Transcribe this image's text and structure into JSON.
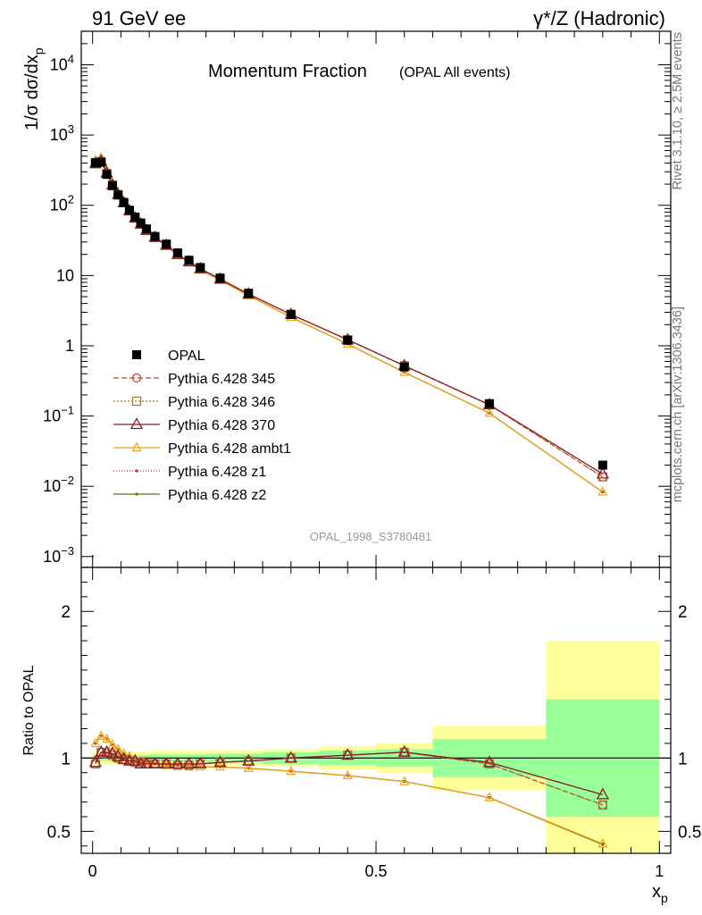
{
  "header": {
    "left": "91 GeV ee",
    "right": "γ*/Z (Hadronic)",
    "side_top": "Rivet 3.1.10, ≥ 2.5M events",
    "side_bottom": "mcplots.cern.ch [arXiv:1306.3436]"
  },
  "chart_data": [
    {
      "type": "line",
      "title": "Momentum Fraction",
      "subtitle": "(OPAL All events)",
      "ylabel": "1/σ dσ/dx_p",
      "yscale": "log",
      "ylim": [
        0.0007,
        30000
      ],
      "xlim": [
        -0.02,
        1.02
      ],
      "analysis": "OPAL_1998_S3780481",
      "legend_position": "middle-left",
      "x": [
        0.005,
        0.015,
        0.025,
        0.035,
        0.045,
        0.055,
        0.065,
        0.075,
        0.085,
        0.095,
        0.11,
        0.13,
        0.15,
        0.17,
        0.19,
        0.225,
        0.275,
        0.35,
        0.45,
        0.55,
        0.7,
        0.9
      ],
      "series": [
        {
          "name": "OPAL",
          "color": "#000000",
          "marker": "square",
          "values": [
            405,
            410,
            275,
            190,
            140,
            110,
            85,
            68,
            56,
            46,
            36,
            28,
            21,
            16.5,
            13,
            9.2,
            5.6,
            2.8,
            1.2,
            0.5,
            0.15,
            0.02
          ]
        },
        {
          "name": "Pythia 6.428 345",
          "color": "#c0403c",
          "dash": "6,3",
          "marker": "circle",
          "values": [
            390,
            420,
            285,
            195,
            142,
            109,
            84,
            66,
            54,
            44,
            35,
            27,
            20,
            15.7,
            12.5,
            8.9,
            5.45,
            2.8,
            1.22,
            0.52,
            0.144,
            0.0136
          ]
        },
        {
          "name": "Pythia 6.428 346",
          "color": "#a87838",
          "dash": "2,2",
          "marker": "square-open",
          "values": [
            390,
            420,
            285,
            195,
            142,
            109,
            84,
            66,
            54,
            44,
            35,
            27,
            20,
            15.7,
            12.5,
            8.9,
            5.45,
            2.8,
            1.22,
            0.52,
            0.144,
            0.0136
          ]
        },
        {
          "name": "Pythia 6.428 370",
          "color": "#8b1a22",
          "dash": "",
          "marker": "triangle",
          "values": [
            392,
            425,
            288,
            195,
            143,
            109,
            84,
            66,
            54,
            44,
            35,
            27,
            20,
            15.7,
            12.5,
            8.9,
            5.45,
            2.8,
            1.22,
            0.52,
            0.145,
            0.015
          ]
        },
        {
          "name": "Pythia 6.428 ambt1",
          "color": "#e8a818",
          "dash": "",
          "marker": "triangle-small",
          "values": [
            440,
            475,
            310,
            205,
            148,
            112,
            86,
            67,
            54,
            44,
            34.5,
            26.5,
            19.8,
            15.3,
            12,
            8.6,
            5.2,
            2.55,
            1.06,
            0.42,
            0.11,
            0.0083
          ]
        },
        {
          "name": "Pythia 6.428 z1",
          "color": "#e02020",
          "dash": "1,2",
          "marker": "dot",
          "values": [
            440,
            475,
            310,
            205,
            148,
            112,
            86,
            67,
            54,
            44,
            34.5,
            26.5,
            19.8,
            15.3,
            12,
            8.6,
            5.2,
            2.55,
            1.06,
            0.42,
            0.11,
            0.0083
          ]
        },
        {
          "name": "Pythia 6.428 z2",
          "color": "#706a10",
          "dash": "",
          "marker": "dot",
          "values": [
            440,
            475,
            310,
            205,
            148,
            112,
            86,
            67,
            54,
            44,
            34.5,
            26.5,
            19.8,
            15.3,
            12,
            8.6,
            5.2,
            2.55,
            1.06,
            0.42,
            0.11,
            0.0083
          ]
        }
      ]
    },
    {
      "type": "line",
      "ylabel": "Ratio to OPAL",
      "xlabel": "x_p",
      "ylim": [
        0.35,
        2.3
      ],
      "xlim": [
        -0.02,
        1.02
      ],
      "x_ticks": [
        "0",
        "0.5",
        "1"
      ],
      "y_ticks": [
        "0.5",
        "1",
        "2"
      ],
      "reference": 1,
      "bands": [
        {
          "x0": 0.0,
          "x1": 0.1,
          "inner": 0.02,
          "outer": 0.04
        },
        {
          "x0": 0.1,
          "x1": 0.2,
          "inner": 0.025,
          "outer": 0.05
        },
        {
          "x0": 0.2,
          "x1": 0.3,
          "inner": 0.03,
          "outer": 0.05
        },
        {
          "x0": 0.3,
          "x1": 0.4,
          "inner": 0.04,
          "outer": 0.06
        },
        {
          "x0": 0.4,
          "x1": 0.5,
          "inner": 0.05,
          "outer": 0.08
        },
        {
          "x0": 0.5,
          "x1": 0.6,
          "inner": 0.06,
          "outer": 0.1
        },
        {
          "x0": 0.6,
          "x1": 0.8,
          "inner": 0.13,
          "outer": 0.22
        },
        {
          "x0": 0.8,
          "x1": 1.0,
          "inner": 0.4,
          "outer": 0.8
        }
      ],
      "band_colors": {
        "inner": "#99ff99",
        "outer": "#ffff99"
      },
      "x": [
        0.005,
        0.015,
        0.025,
        0.035,
        0.045,
        0.055,
        0.065,
        0.075,
        0.085,
        0.095,
        0.11,
        0.13,
        0.15,
        0.17,
        0.19,
        0.225,
        0.275,
        0.35,
        0.45,
        0.55,
        0.7,
        0.9
      ],
      "series": [
        {
          "name": "Pythia 6.428 345",
          "values": [
            0.96,
            1.04,
            1.03,
            1.02,
            1.0,
            0.99,
            0.98,
            0.97,
            0.97,
            0.96,
            0.96,
            0.96,
            0.95,
            0.95,
            0.96,
            0.97,
            0.98,
            1.0,
            1.02,
            1.04,
            0.96,
            0.68
          ]
        },
        {
          "name": "Pythia 6.428 346",
          "values": [
            0.96,
            1.04,
            1.03,
            1.02,
            1.0,
            0.99,
            0.98,
            0.97,
            0.97,
            0.96,
            0.96,
            0.96,
            0.95,
            0.95,
            0.96,
            0.97,
            0.98,
            1.0,
            1.02,
            1.04,
            0.96,
            0.68
          ]
        },
        {
          "name": "Pythia 6.428 370",
          "values": [
            0.97,
            1.04,
            1.04,
            1.03,
            1.01,
            0.99,
            0.98,
            0.98,
            0.96,
            0.96,
            0.96,
            0.96,
            0.96,
            0.96,
            0.96,
            0.97,
            0.98,
            1.0,
            1.02,
            1.04,
            0.97,
            0.75
          ]
        },
        {
          "name": "Pythia 6.428 ambt1",
          "values": [
            1.1,
            1.15,
            1.13,
            1.09,
            1.06,
            1.03,
            1.01,
            0.99,
            0.98,
            0.97,
            0.96,
            0.95,
            0.95,
            0.94,
            0.94,
            0.94,
            0.93,
            0.91,
            0.88,
            0.84,
            0.73,
            0.415
          ]
        },
        {
          "name": "Pythia 6.428 z1",
          "values": [
            1.1,
            1.15,
            1.13,
            1.09,
            1.06,
            1.03,
            1.01,
            0.99,
            0.98,
            0.97,
            0.96,
            0.95,
            0.95,
            0.94,
            0.94,
            0.94,
            0.93,
            0.91,
            0.88,
            0.84,
            0.73,
            0.415
          ]
        },
        {
          "name": "Pythia 6.428 z2",
          "values": [
            1.1,
            1.15,
            1.13,
            1.09,
            1.06,
            1.03,
            1.01,
            0.99,
            0.98,
            0.97,
            0.96,
            0.95,
            0.95,
            0.94,
            0.94,
            0.94,
            0.93,
            0.91,
            0.88,
            0.84,
            0.73,
            0.41
          ]
        }
      ]
    }
  ]
}
